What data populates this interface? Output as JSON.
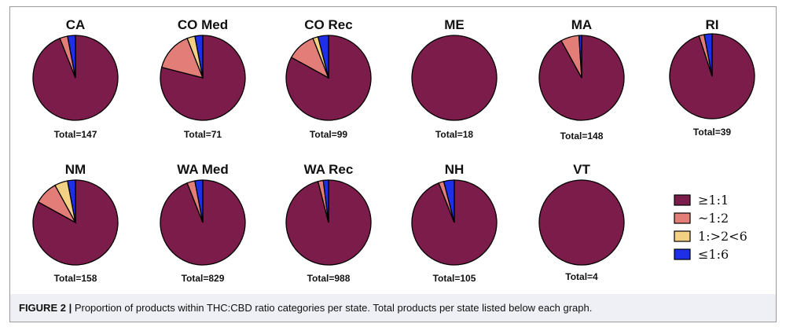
{
  "chart_data": {
    "type": "pie",
    "categories": [
      "≥1:1",
      "~1:2",
      "1:>2<6",
      "≤1:6"
    ],
    "colors": [
      "#7b1c4b",
      "#e27d78",
      "#f3d184",
      "#1f2fe8"
    ],
    "charts": [
      {
        "title": "CA",
        "total": "Total=147",
        "values": [
          94,
          3,
          0,
          3
        ]
      },
      {
        "title": "CO Med",
        "total": "Total=71",
        "values": [
          79,
          15,
          3,
          3
        ]
      },
      {
        "title": "CO Rec",
        "total": "Total=99",
        "values": [
          83,
          11,
          2,
          4
        ]
      },
      {
        "title": "ME",
        "total": "Total=18",
        "values": [
          100,
          0,
          0,
          0
        ]
      },
      {
        "title": "MA",
        "total": "Total=148",
        "values": [
          92,
          7,
          0,
          1
        ]
      },
      {
        "title": "RI",
        "total": "Total=39",
        "values": [
          95,
          2,
          0,
          3
        ]
      },
      {
        "title": "NM",
        "total": "Total=158",
        "values": [
          83,
          9,
          5,
          3
        ]
      },
      {
        "title": "WA Med",
        "total": "Total=829",
        "values": [
          94,
          3,
          0,
          3
        ]
      },
      {
        "title": "WA Rec",
        "total": "Total=988",
        "values": [
          96,
          2,
          0,
          2
        ]
      },
      {
        "title": "NH",
        "total": "Total=105",
        "values": [
          94,
          2,
          0,
          4
        ]
      },
      {
        "title": "VT",
        "total": "Total=4",
        "values": [
          100,
          0,
          0,
          0
        ]
      }
    ]
  },
  "caption": {
    "label": "FIGURE 2 |",
    "text": " Proportion of products within THC:CBD ratio categories per state. Total products per state listed below each graph."
  }
}
